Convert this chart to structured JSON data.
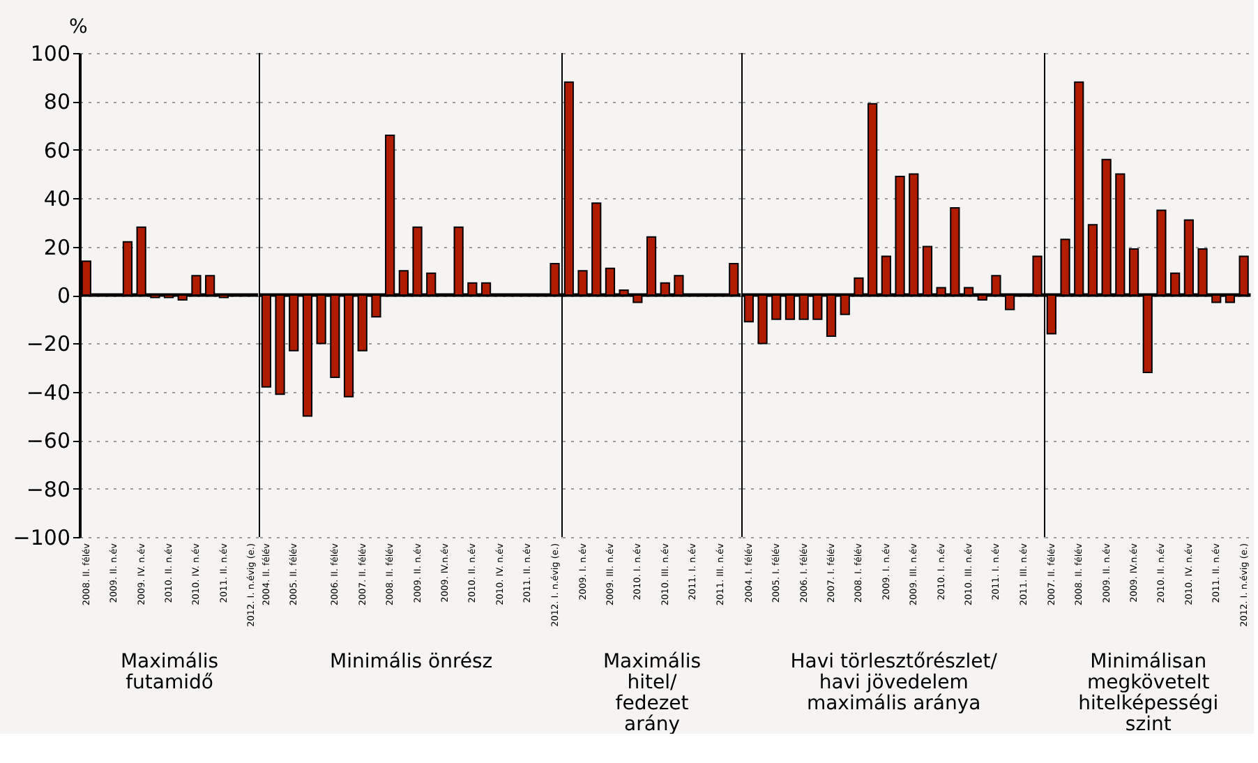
{
  "chart_data": [
    {
      "type": "bar",
      "ylabel": "%",
      "xlabel": "Maximális\nfutamidő",
      "color": "#b01c00",
      "categories": [
        "2008. II. félév",
        null,
        "2009. II. n.év",
        null,
        "2009. IV. n.év",
        null,
        "2010. II. n.év",
        null,
        "2010. IV. n.év",
        null,
        "2011. II. n.év",
        null,
        "2012. I. n.évig (e.)"
      ],
      "values": [
        14,
        0,
        0,
        22,
        28,
        -1,
        -1,
        -2,
        8,
        8,
        -1,
        0,
        0
      ],
      "ylim": [
        -100,
        100
      ],
      "yticks": [
        -100,
        -80,
        -60,
        -40,
        -20,
        0,
        20,
        40,
        60,
        80,
        100
      ],
      "grid": "y"
    },
    {
      "type": "bar",
      "xlabel": "Minimális önrész",
      "color": "#b01c00",
      "categories": [
        "2004. II. félév",
        null,
        "2005. II. félév",
        null,
        null,
        "2006. II. félév",
        null,
        "2007. II. félév",
        null,
        "2008. II. félév",
        null,
        "2009. II. n.év",
        null,
        "2009. IV.n.év",
        null,
        "2010. II. n.év",
        null,
        "2010. IV. n.év",
        null,
        "2011. II. n.év",
        null,
        "2012. I. n.évig (e.)"
      ],
      "values": [
        -38,
        -41,
        -23,
        -50,
        -20,
        -34,
        -42,
        -23,
        -9,
        66,
        10,
        28,
        9,
        0,
        28,
        5,
        5,
        0,
        0,
        0,
        0,
        13
      ],
      "ylim": [
        -100,
        100
      ],
      "yticks": [
        -100,
        -80,
        -60,
        -40,
        -20,
        0,
        20,
        40,
        60,
        80,
        100
      ],
      "grid": "y",
      "tick_labels": "x"
    },
    {
      "type": "bar",
      "xlabel": "Maximális\nhitel/\nfedezet\narány",
      "color": "#b01c00",
      "categories": [
        null,
        "2009. I. n.év",
        null,
        "2009. III. n.év",
        null,
        "2010. I. n.év",
        null,
        "2010. III. n.év",
        null,
        "2011. I. n.év",
        null,
        "2011. III. n.év",
        null
      ],
      "values": [
        88,
        10,
        38,
        11,
        2,
        -3,
        24,
        5,
        8,
        0,
        0,
        0,
        13
      ],
      "ylim": [
        -100,
        100
      ],
      "yticks": [
        -100,
        -80,
        -60,
        -40,
        -20,
        0,
        20,
        40,
        60,
        80,
        100
      ],
      "grid": "y",
      "tick_labels": "x"
    },
    {
      "type": "bar",
      "xlabel": "Havi törlesztőrészlet/\nhavi jövedelem\nmaximális aránya",
      "color": "#b01c00",
      "categories": [
        "2004. I. félév",
        null,
        "2005. I. félév",
        null,
        "2006. I. félév",
        null,
        "2007. I. félév",
        null,
        "2008. I. félév",
        null,
        "2009. I. n.év",
        null,
        "2009. III. n.év",
        null,
        "2010. I. n.év",
        null,
        "2010. III. n.év",
        null,
        "2011. I. n.év",
        null,
        "2011. III. n.év",
        null
      ],
      "values": [
        -11,
        -20,
        -10,
        -10,
        -10,
        -10,
        -17,
        -8,
        7,
        79,
        16,
        49,
        50,
        20,
        3,
        36,
        3,
        -2,
        8,
        -6,
        0,
        16
      ],
      "ylim": [
        -100,
        100
      ],
      "yticks": [
        -100,
        -80,
        -60,
        -40,
        -20,
        0,
        20,
        40,
        60,
        80,
        100
      ],
      "grid": "y",
      "tick_labels": "x"
    },
    {
      "type": "bar",
      "xlabel": "Minimálisan\nmegkövetelt\nhitelképességi\nszint",
      "color": "#b01c00",
      "categories": [
        "2007. II. félév",
        null,
        "2008. II. félév",
        null,
        "2009. II. n.év",
        null,
        "2009. IV.n.év",
        null,
        "2010. II. n.év",
        null,
        "2010. IV. n.év",
        null,
        "2011. II. n.év",
        null,
        "2012. I. n.évig (e.)"
      ],
      "values": [
        -16,
        23,
        88,
        29,
        56,
        50,
        19,
        -32,
        35,
        9,
        31,
        19,
        -3,
        -3,
        16
      ],
      "ylim": [
        -100,
        100
      ],
      "yticks": [
        -100,
        -80,
        -60,
        -40,
        -20,
        0,
        20,
        40,
        60,
        80,
        100
      ],
      "grid": "y",
      "tick_labels": "x"
    }
  ]
}
